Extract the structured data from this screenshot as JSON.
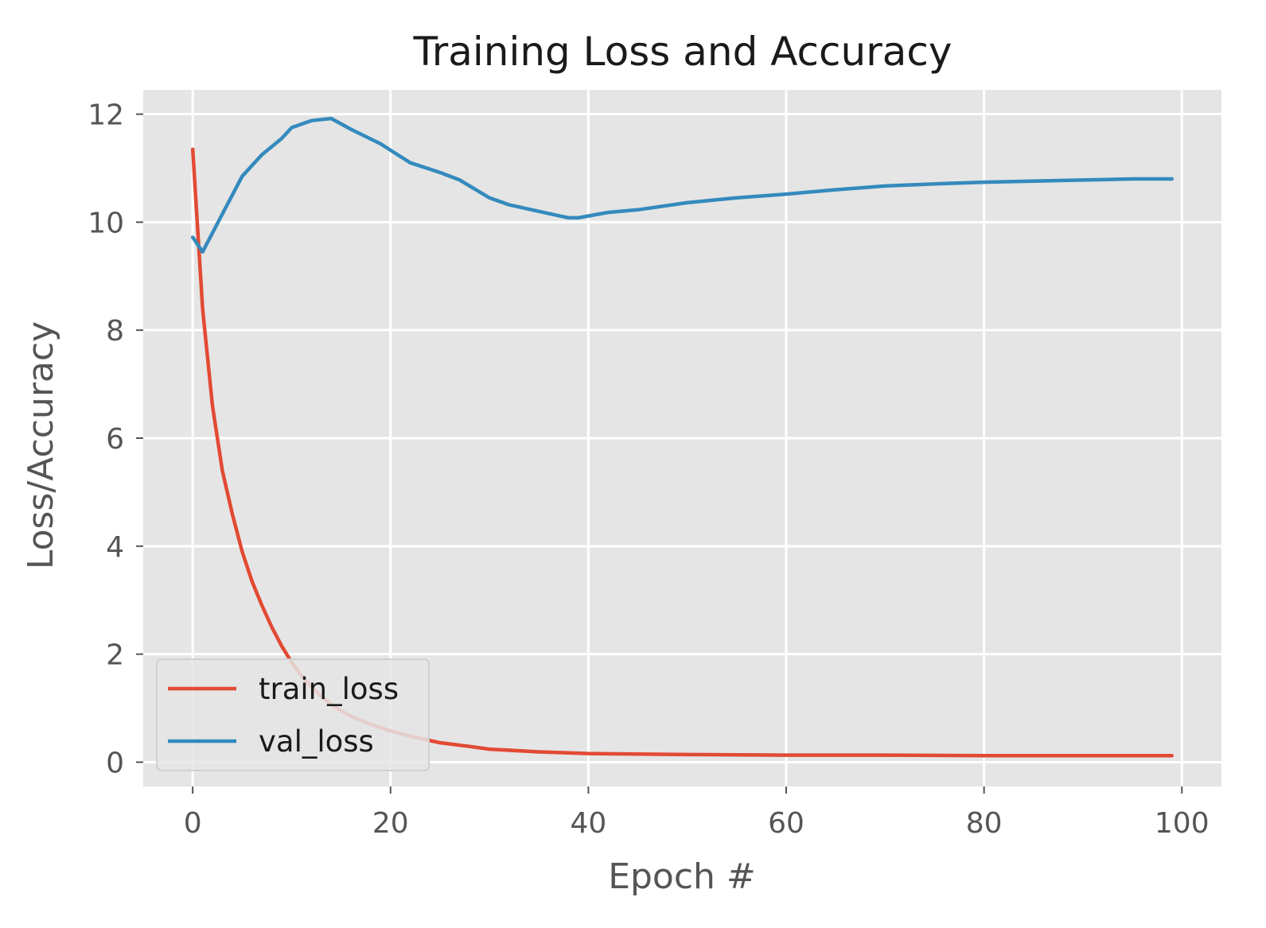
{
  "chart_data": {
    "type": "line",
    "title": "Training Loss and Accuracy",
    "xlabel": "Epoch #",
    "ylabel": "Loss/Accuracy",
    "xlim": [
      -5,
      104
    ],
    "ylim": [
      -0.45,
      12.45
    ],
    "xticks": [
      0,
      20,
      40,
      60,
      80,
      100
    ],
    "yticks": [
      0,
      2,
      4,
      6,
      8,
      10,
      12
    ],
    "grid": true,
    "legend_position": "lower-left",
    "series": [
      {
        "name": "train_loss",
        "color": "#e24a33",
        "x": [
          0,
          1,
          2,
          3,
          4,
          5,
          6,
          7,
          8,
          9,
          10,
          11,
          12,
          13,
          14,
          15,
          16,
          18,
          20,
          22,
          25,
          28,
          30,
          35,
          40,
          50,
          60,
          70,
          80,
          90,
          99
        ],
        "y": [
          11.35,
          8.4,
          6.6,
          5.4,
          4.6,
          3.9,
          3.35,
          2.9,
          2.5,
          2.15,
          1.85,
          1.6,
          1.4,
          1.22,
          1.07,
          0.95,
          0.85,
          0.7,
          0.58,
          0.48,
          0.36,
          0.29,
          0.24,
          0.19,
          0.16,
          0.14,
          0.13,
          0.13,
          0.12,
          0.12,
          0.12
        ]
      },
      {
        "name": "val_loss",
        "color": "#348abd",
        "x": [
          0,
          1,
          3,
          5,
          7,
          9,
          10,
          12,
          14,
          16,
          19,
          22,
          25,
          27,
          30,
          32,
          35,
          38,
          39,
          42,
          45,
          50,
          55,
          60,
          65,
          70,
          75,
          80,
          85,
          90,
          95,
          99
        ],
        "y": [
          9.72,
          9.45,
          10.15,
          10.85,
          11.25,
          11.55,
          11.75,
          11.88,
          11.92,
          11.72,
          11.45,
          11.1,
          10.92,
          10.78,
          10.45,
          10.32,
          10.2,
          10.08,
          10.08,
          10.18,
          10.23,
          10.36,
          10.45,
          10.52,
          10.6,
          10.67,
          10.71,
          10.74,
          10.76,
          10.78,
          10.8,
          10.8
        ]
      }
    ]
  }
}
